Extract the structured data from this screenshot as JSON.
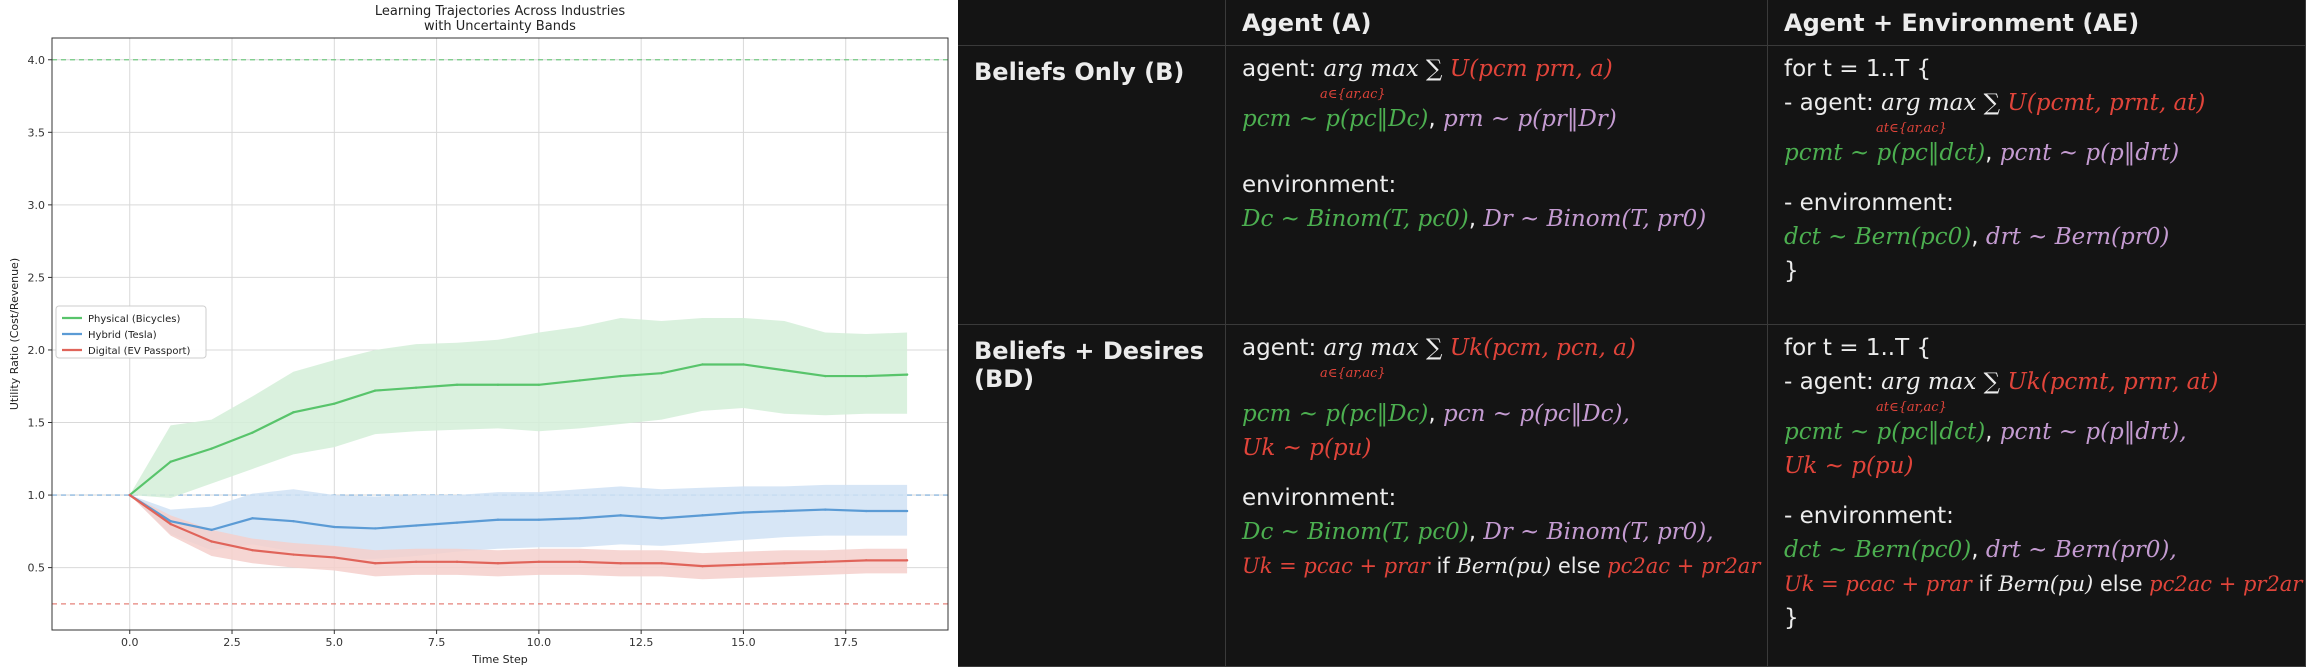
{
  "chart_data": {
    "type": "line",
    "title_line1": "Learning Trajectories Across Industries",
    "title_line2": "with Uncertainty Bands",
    "xlabel": "Time Step",
    "ylabel": "Utility Ratio (Cost/Revenue)",
    "xlim": [
      -1.9,
      20.0
    ],
    "ylim": [
      0.07,
      4.15
    ],
    "xticks": [
      "0.0",
      "2.5",
      "5.0",
      "7.5",
      "10.0",
      "12.5",
      "15.0",
      "17.5"
    ],
    "xtick_values": [
      0,
      2.5,
      5,
      7.5,
      10,
      12.5,
      15,
      17.5
    ],
    "yticks": [
      "0.5",
      "1.0",
      "1.5",
      "2.0",
      "2.5",
      "3.0",
      "3.5",
      "4.0"
    ],
    "ytick_values": [
      0.5,
      1.0,
      1.5,
      2.0,
      2.5,
      3.0,
      3.5,
      4.0
    ],
    "grid": true,
    "legend_position": "center-left",
    "x": [
      0,
      1,
      2,
      3,
      4,
      5,
      6,
      7,
      8,
      9,
      10,
      11,
      12,
      13,
      14,
      15,
      16,
      17,
      18,
      19
    ],
    "series": [
      {
        "name": "Physical (Bicycles)",
        "color": "#58c46b",
        "band_color": "#d3efd8",
        "values": [
          1.0,
          1.23,
          1.32,
          1.43,
          1.57,
          1.63,
          1.72,
          1.74,
          1.76,
          1.76,
          1.76,
          1.79,
          1.82,
          1.84,
          1.9,
          1.9,
          1.86,
          1.82,
          1.82,
          1.83
        ],
        "upper": [
          1.0,
          1.48,
          1.52,
          1.68,
          1.85,
          1.93,
          2.0,
          2.04,
          2.05,
          2.07,
          2.12,
          2.16,
          2.22,
          2.2,
          2.22,
          2.22,
          2.2,
          2.12,
          2.11,
          2.12
        ],
        "lower": [
          1.0,
          0.98,
          1.08,
          1.18,
          1.28,
          1.33,
          1.42,
          1.44,
          1.45,
          1.46,
          1.44,
          1.46,
          1.49,
          1.52,
          1.58,
          1.6,
          1.56,
          1.55,
          1.56,
          1.56
        ]
      },
      {
        "name": "Hybrid (Tesla)",
        "color": "#5b9bd5",
        "band_color": "#d0e2f4",
        "values": [
          1.0,
          0.82,
          0.76,
          0.84,
          0.82,
          0.78,
          0.77,
          0.79,
          0.81,
          0.83,
          0.83,
          0.84,
          0.86,
          0.84,
          0.86,
          0.88,
          0.89,
          0.9,
          0.89,
          0.89
        ],
        "upper": [
          1.0,
          0.9,
          0.92,
          1.01,
          1.04,
          1.0,
          0.99,
          1.0,
          1.0,
          1.02,
          1.02,
          1.04,
          1.06,
          1.04,
          1.05,
          1.06,
          1.06,
          1.07,
          1.07,
          1.07
        ],
        "lower": [
          1.0,
          0.73,
          0.62,
          0.66,
          0.61,
          0.56,
          0.56,
          0.58,
          0.61,
          0.63,
          0.64,
          0.64,
          0.66,
          0.65,
          0.67,
          0.69,
          0.71,
          0.72,
          0.72,
          0.72
        ]
      },
      {
        "name": "Digital (EV Passport)",
        "color": "#e0645a",
        "band_color": "#f4cfcb",
        "values": [
          1.0,
          0.8,
          0.68,
          0.62,
          0.59,
          0.57,
          0.53,
          0.54,
          0.54,
          0.53,
          0.54,
          0.54,
          0.53,
          0.53,
          0.51,
          0.52,
          0.53,
          0.54,
          0.55,
          0.55
        ],
        "upper": [
          1.0,
          0.86,
          0.76,
          0.7,
          0.67,
          0.65,
          0.62,
          0.63,
          0.63,
          0.62,
          0.63,
          0.63,
          0.62,
          0.62,
          0.6,
          0.61,
          0.62,
          0.62,
          0.63,
          0.63
        ],
        "lower": [
          1.0,
          0.72,
          0.58,
          0.53,
          0.5,
          0.48,
          0.44,
          0.45,
          0.45,
          0.44,
          0.45,
          0.45,
          0.44,
          0.44,
          0.42,
          0.43,
          0.44,
          0.45,
          0.46,
          0.46
        ]
      }
    ],
    "reference_lines": [
      {
        "y": 4.0,
        "color": "#58c46b"
      },
      {
        "y": 1.0,
        "color": "#5b9bd5"
      },
      {
        "y": 0.25,
        "color": "#e0645a"
      }
    ]
  },
  "table": {
    "col_header_a": "Agent (A)",
    "col_header_ae": "Agent + Environment (AE)",
    "row_b_label": "Beliefs Only (B)",
    "row_bd_label": "Beliefs + Desires (BD)",
    "b_a": {
      "agent_prefix": "agent: ",
      "argmax": "arg max ∑ ",
      "utility": "U(pcm prn, a)",
      "subscript": "a∈{ar,ac}",
      "beliefs_c": "pcm ~ p(pc‖Dc)",
      "beliefs_r": "prn ~ p(pr‖Dr)",
      "env_label": "environment:",
      "env_c": "Dc ~ Binom(T, pc0)",
      "env_r": "Dr ~ Binom(T, pr0)"
    },
    "b_ae": {
      "loop_open": "for t = 1..T {",
      "agent_prefix": "- agent: ",
      "argmax": "arg max ∑ ",
      "utility": "U(pcmt, prnt, at)",
      "subscript": "at∈{ar,ac}",
      "beliefs_c": "pcmt ~ p(pc‖dct)",
      "beliefs_r": "pcnt ~ p(p‖drt)",
      "env_label": "- environment:",
      "env_c": "dct ~ Bern(pc0)",
      "env_r": "drt ~ Bern(pr0)",
      "loop_close": "}"
    },
    "bd_a": {
      "agent_prefix": "agent: ",
      "argmax": "arg max ∑ ",
      "utility": "Uk(pcm, pcn, a)",
      "subscript": "a∈{ar,ac}",
      "beliefs_c": "pcm ~ p(pc‖Dc)",
      "beliefs_r": "pcn ~ p(pc‖Dc),",
      "desire": "Uk ~ p(pu)",
      "env_label": "environment:",
      "env_c": "Dc ~ Binom(T, pc0)",
      "env_r": "Dr ~ Binom(T, pr0),",
      "u_def1": "Uk = pcac + prar",
      "u_if": " if ",
      "u_bern": "Bern(pu)",
      "u_else": " else ",
      "u_def2": "pc2ac + pr2ar"
    },
    "bd_ae": {
      "loop_open": "for t = 1..T {",
      "agent_prefix": "- agent: ",
      "argmax": "arg max ∑ ",
      "utility": "Uk(pcmt, prnr, at)",
      "subscript": "at∈{ar,ac}",
      "beliefs_c": "pcmt ~ p(pc‖dct)",
      "beliefs_r": "pcnt ~ p(p‖drt),",
      "desire": "Uk ~ p(pu)",
      "env_label": "- environment:",
      "env_c": "dct ~ Bern(pc0)",
      "env_r": "drt ~ Bern(pr0),",
      "u_def1": "Uk = pcac + prar",
      "u_if": " if ",
      "u_bern": "Bern(pu)",
      "u_else": " else ",
      "u_def2": "pc2ac + pr2ar",
      "loop_close": "}"
    }
  }
}
